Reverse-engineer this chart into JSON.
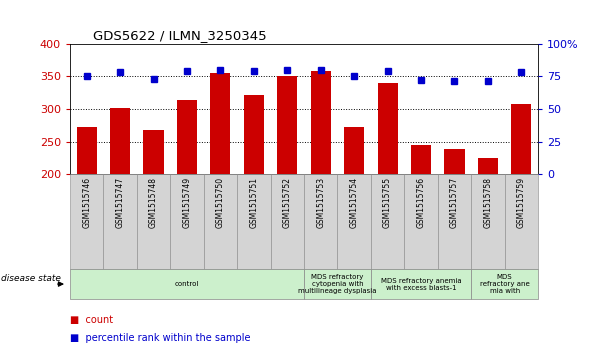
{
  "title": "GDS5622 / ILMN_3250345",
  "samples": [
    "GSM1515746",
    "GSM1515747",
    "GSM1515748",
    "GSM1515749",
    "GSM1515750",
    "GSM1515751",
    "GSM1515752",
    "GSM1515753",
    "GSM1515754",
    "GSM1515755",
    "GSM1515756",
    "GSM1515757",
    "GSM1515758",
    "GSM1515759"
  ],
  "counts": [
    272,
    302,
    267,
    314,
    355,
    322,
    350,
    358,
    272,
    340,
    245,
    238,
    225,
    307
  ],
  "percentiles": [
    75,
    78,
    73,
    79,
    80,
    79,
    80,
    80,
    75,
    79,
    72,
    71,
    71,
    78
  ],
  "bar_color": "#cc0000",
  "dot_color": "#0000cc",
  "ymin": 200,
  "ymax": 400,
  "y2min": 0,
  "y2max": 100,
  "yticks": [
    200,
    250,
    300,
    350,
    400
  ],
  "y2ticks": [
    0,
    25,
    50,
    75,
    100
  ],
  "grid_values": [
    250,
    300,
    350
  ],
  "groups": [
    {
      "label": "control",
      "start": 0,
      "end": 7
    },
    {
      "label": "MDS refractory\ncytopenia with\nmultilineage dysplasia",
      "start": 7,
      "end": 9
    },
    {
      "label": "MDS refractory anemia\nwith excess blasts-1",
      "start": 9,
      "end": 12
    },
    {
      "label": "MDS\nrefractory ane\nmia with",
      "start": 12,
      "end": 14
    }
  ],
  "disease_label": "disease state",
  "bg_color": "#ffffff",
  "tick_label_color_left": "#cc0000",
  "tick_label_color_right": "#0000cc",
  "sample_box_color": "#d4d4d4",
  "disease_box_color": "#ccf0cc",
  "xlim_left": -0.5,
  "xlim_right": 13.5
}
